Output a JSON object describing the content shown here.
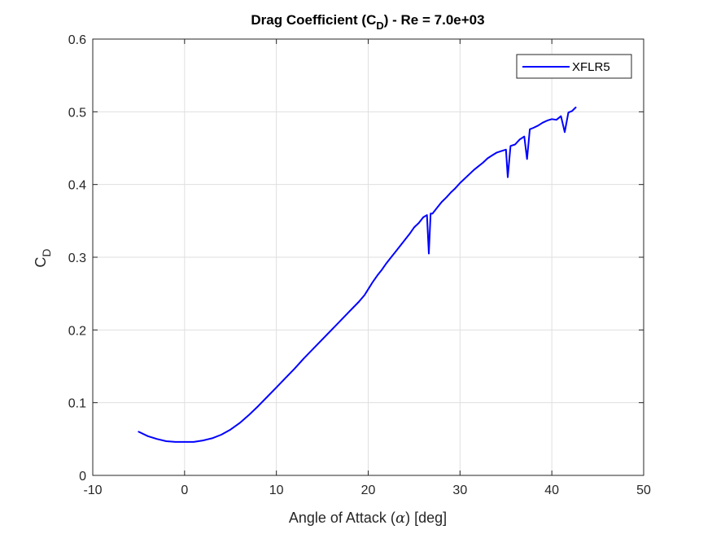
{
  "chart_data": {
    "type": "line",
    "title": {
      "main": "Drag Coefficient (C",
      "sub": "D",
      "rest": ") - Re = 7.0e+03"
    },
    "xlabel": {
      "pre": "Angle of Attack (",
      "symbol": "α",
      "post": ") [deg]"
    },
    "ylabel": {
      "main": "C",
      "sub": "D"
    },
    "xlim": [
      -10,
      50
    ],
    "ylim": [
      0,
      0.6
    ],
    "xticks": [
      -10,
      0,
      10,
      20,
      30,
      40,
      50
    ],
    "yticks": [
      0,
      0.1,
      0.2,
      0.3,
      0.4,
      0.5,
      0.6
    ],
    "xtick_labels": [
      "-10",
      "0",
      "10",
      "20",
      "30",
      "40",
      "50"
    ],
    "ytick_labels": [
      "0",
      "0.1",
      "0.2",
      "0.3",
      "0.4",
      "0.5",
      "0.6"
    ],
    "grid": true,
    "legend": {
      "position": "top-right"
    },
    "colors": {
      "series": "#0000ff",
      "grid": "#dfdfdf",
      "axis": "#262626"
    },
    "series": [
      {
        "name": "XFLR5",
        "x": [
          -5.0,
          -4.0,
          -3.0,
          -2.0,
          -1.0,
          0.0,
          1.0,
          2.0,
          3.0,
          4.0,
          5.0,
          6.0,
          7.0,
          8.0,
          9.0,
          10.0,
          11.0,
          12.0,
          13.0,
          14.0,
          15.0,
          16.0,
          17.0,
          18.0,
          19.0,
          19.6,
          20.0,
          20.5,
          21.0,
          21.5,
          22.0,
          22.5,
          23.0,
          23.5,
          24.0,
          24.5,
          25.0,
          25.5,
          26.0,
          26.4,
          26.6,
          26.8,
          27.0,
          27.5,
          28.0,
          28.5,
          29.0,
          29.5,
          30.0,
          30.5,
          31.0,
          31.5,
          32.0,
          32.5,
          33.0,
          33.5,
          34.0,
          34.5,
          35.0,
          35.2,
          35.5,
          36.0,
          36.5,
          37.0,
          37.3,
          37.6,
          38.0,
          38.5,
          39.0,
          39.5,
          40.0,
          40.5,
          41.0,
          41.4,
          41.8,
          42.2,
          42.6
        ],
        "y": [
          0.06,
          0.054,
          0.05,
          0.047,
          0.046,
          0.046,
          0.046,
          0.048,
          0.051,
          0.056,
          0.063,
          0.072,
          0.083,
          0.095,
          0.108,
          0.121,
          0.134,
          0.147,
          0.161,
          0.174,
          0.187,
          0.2,
          0.213,
          0.226,
          0.239,
          0.248,
          0.256,
          0.266,
          0.275,
          0.283,
          0.292,
          0.3,
          0.308,
          0.316,
          0.324,
          0.332,
          0.341,
          0.347,
          0.355,
          0.358,
          0.305,
          0.36,
          0.36,
          0.368,
          0.376,
          0.382,
          0.389,
          0.395,
          0.402,
          0.408,
          0.414,
          0.42,
          0.425,
          0.43,
          0.436,
          0.44,
          0.444,
          0.446,
          0.448,
          0.41,
          0.453,
          0.455,
          0.462,
          0.466,
          0.435,
          0.476,
          0.478,
          0.481,
          0.485,
          0.488,
          0.49,
          0.489,
          0.494,
          0.472,
          0.499,
          0.501,
          0.506
        ]
      }
    ]
  }
}
